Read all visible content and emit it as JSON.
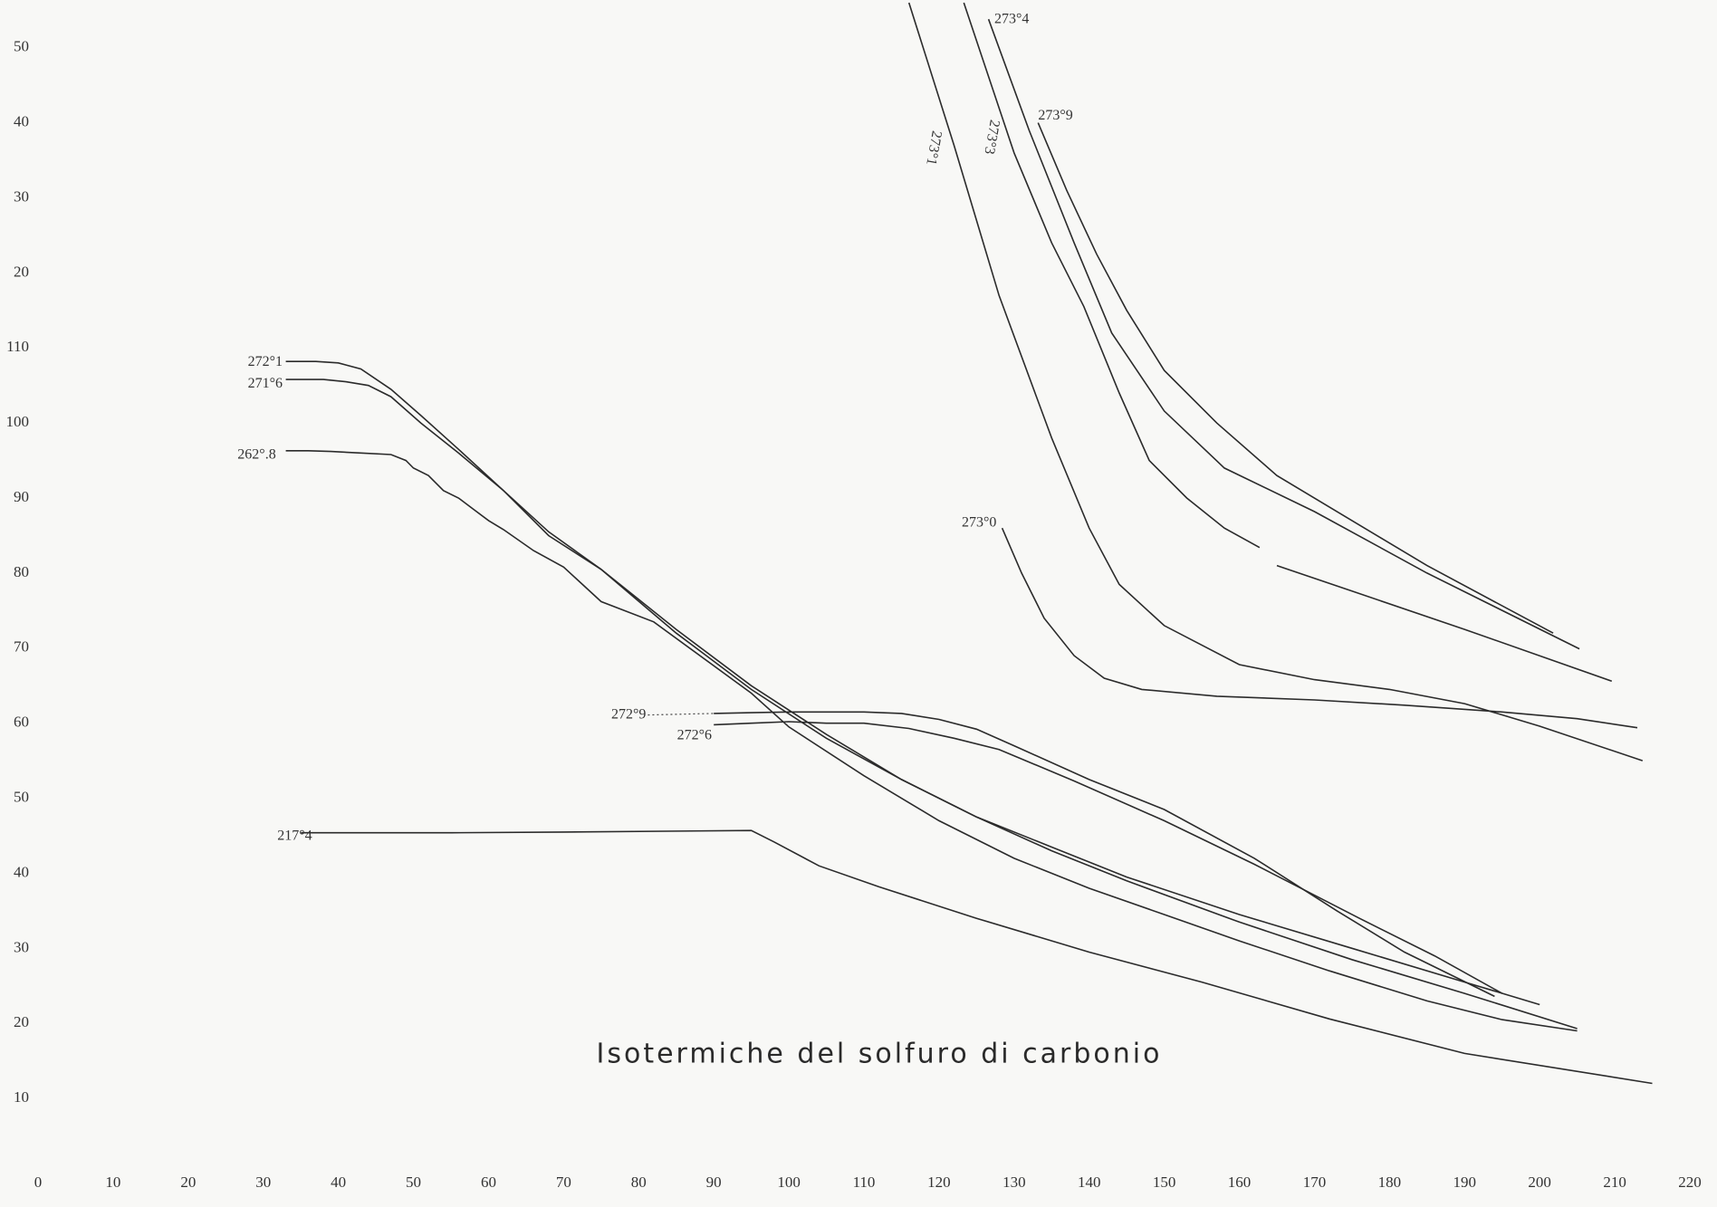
{
  "chart_data": {
    "type": "line",
    "title": "Isotermiche del solfuro di carbonio",
    "xlim": [
      0,
      220
    ],
    "ylim": [
      0,
      156
    ],
    "xticks": [
      0,
      10,
      20,
      30,
      40,
      50,
      60,
      70,
      80,
      90,
      100,
      110,
      120,
      130,
      140,
      150,
      160,
      170,
      180,
      190,
      200,
      210,
      220
    ],
    "yticks": [
      10,
      20,
      30,
      40,
      50,
      60,
      70,
      80,
      90,
      100,
      110,
      {
        "value": 120,
        "label": "20"
      },
      {
        "value": 130,
        "label": "30"
      },
      {
        "value": 140,
        "label": "40"
      },
      {
        "value": 150,
        "label": "50"
      }
    ],
    "grid": false,
    "series": [
      {
        "name": "272°1",
        "color": "#2b2b2b",
        "x": [
          33,
          37,
          40,
          43,
          47,
          51,
          56,
          62,
          68,
          75,
          85,
          95,
          105,
          115,
          125,
          135,
          145,
          160,
          175,
          190,
          200
        ],
        "values": [
          108.2,
          108.2,
          108,
          107.2,
          104.5,
          101,
          96.5,
          91,
          85.5,
          80.5,
          72.5,
          65,
          58.5,
          52.5,
          47.5,
          43.5,
          39.5,
          34.5,
          30,
          25.5,
          22.5
        ]
      },
      {
        "name": "271°6",
        "color": "#2b2b2b",
        "x": [
          33,
          35,
          38,
          41,
          44,
          47,
          51,
          56,
          62,
          68,
          75,
          85,
          95,
          105,
          115,
          125,
          135,
          145,
          160,
          175,
          190,
          205
        ],
        "values": [
          105.8,
          105.8,
          105.8,
          105.5,
          105,
          103.5,
          100,
          96,
          91,
          85,
          80.5,
          72,
          64.5,
          58,
          52.5,
          47.5,
          43,
          39,
          33.5,
          28.5,
          24,
          19.3
        ]
      },
      {
        "name": "262°.8",
        "color": "#2b2b2b",
        "x": [
          33,
          36,
          39,
          43,
          47,
          49,
          50,
          52,
          54,
          56,
          58,
          60,
          62,
          66,
          70,
          75,
          82,
          95,
          100,
          110,
          120,
          130,
          140,
          150,
          160,
          172,
          185,
          195,
          205
        ],
        "values": [
          96.3,
          96.3,
          96.2,
          96,
          95.8,
          95,
          94,
          93,
          91,
          90,
          88.5,
          87,
          85.8,
          83,
          80.8,
          76.2,
          73.5,
          64,
          59.5,
          53,
          47,
          42,
          38,
          34.5,
          31,
          27,
          23,
          20.5,
          19
        ]
      },
      {
        "name": "217°4",
        "color": "#2b2b2b",
        "x": [
          35,
          40,
          55,
          70,
          95,
          98,
          104,
          112,
          125,
          140,
          155,
          172,
          190,
          215
        ],
        "values": [
          45.4,
          45.4,
          45.4,
          45.5,
          45.7,
          44.2,
          41,
          38.2,
          34,
          29.5,
          25.5,
          20.6,
          16,
          12
        ]
      },
      {
        "name": "272°9",
        "color": "#2b2b2b",
        "x": [
          90,
          95,
          100,
          105,
          110,
          115,
          120,
          125,
          130,
          140,
          150,
          162,
          173,
          182,
          194
        ],
        "values": [
          61.3,
          61.4,
          61.5,
          61.5,
          61.5,
          61.3,
          60.5,
          59.2,
          57,
          52.5,
          48.5,
          42,
          35,
          29.5,
          23.6
        ]
      },
      {
        "name": "272°6",
        "color": "#2b2b2b",
        "x": [
          90,
          95,
          100,
          105,
          110,
          116,
          122,
          128,
          138,
          150,
          162,
          176,
          186,
          195
        ],
        "values": [
          59.8,
          60,
          60.2,
          60,
          60,
          59.3,
          58,
          56.5,
          52.3,
          47,
          41.2,
          34,
          29,
          24
        ]
      },
      {
        "name": "273°0",
        "color": "#2b2b2b",
        "x": [
          128.4,
          131,
          134,
          138,
          142,
          147,
          157,
          170,
          182,
          195,
          205,
          213
        ],
        "values": [
          86,
          80,
          74,
          69,
          66,
          64.5,
          63.6,
          63.1,
          62.4,
          61.5,
          60.6,
          59.4
        ]
      },
      {
        "name": "273°1",
        "color": "#2b2b2b",
        "x": [
          116,
          122,
          128,
          135,
          140,
          144,
          150,
          160,
          170,
          180,
          190,
          200,
          213.7
        ],
        "values": [
          156,
          137,
          117,
          98,
          86,
          78.5,
          73,
          67.8,
          65.8,
          64.5,
          62.6,
          59.6,
          55
        ]
      },
      {
        "name": "273°3",
        "color": "#2b2b2b",
        "x": [
          123.3,
          130,
          135,
          139.3,
          144,
          148,
          153,
          158,
          162.7,
          164,
          165,
          175,
          190,
          209.6
        ],
        "values": [
          156,
          136,
          124,
          115.5,
          104,
          95,
          90,
          86,
          83.4,
          null,
          81,
          77.6,
          72.5,
          65.6
        ]
      },
      {
        "name": "273°4",
        "color": "#2b2b2b",
        "x": [
          126.6,
          132,
          138,
          143,
          150,
          158,
          170,
          185,
          205.3
        ],
        "values": [
          153.8,
          139,
          124,
          112,
          101.6,
          94,
          88.2,
          80,
          69.9
        ]
      },
      {
        "name": "273°9",
        "color": "#2b2b2b",
        "x": [
          133.2,
          137,
          141,
          145,
          150,
          157,
          165,
          175,
          185,
          201.8
        ],
        "values": [
          140,
          131,
          122.5,
          115,
          107,
          100,
          93,
          87,
          81,
          72
        ]
      }
    ]
  }
}
